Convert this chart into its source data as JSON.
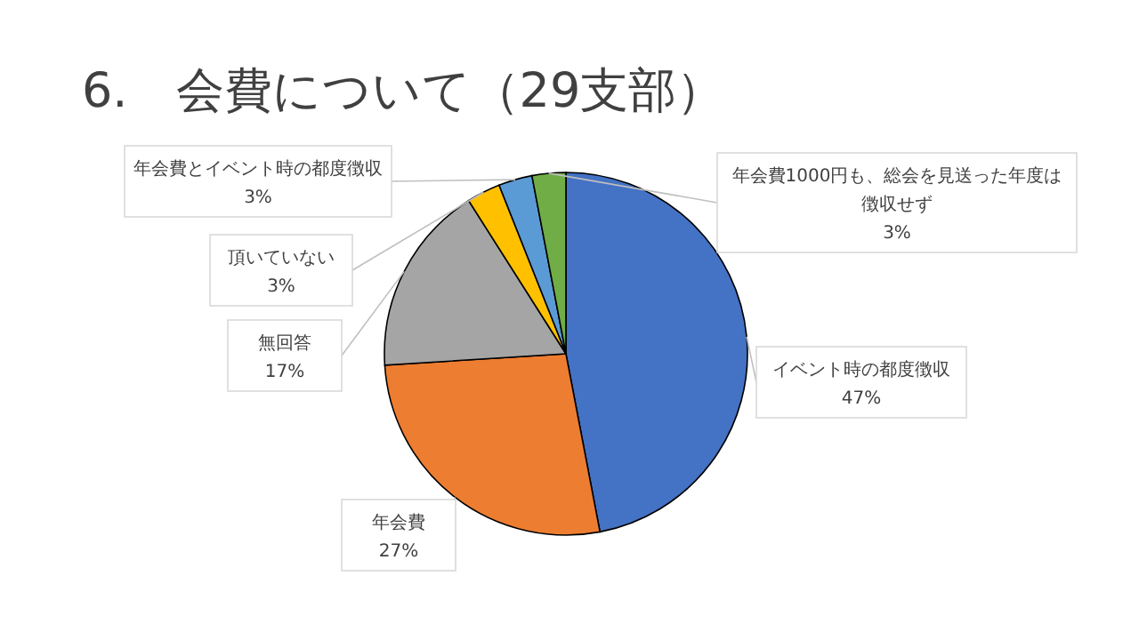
{
  "chart_data": {
    "type": "pie",
    "title": "6.　会費について（29支部）",
    "categories": [
      "イベント時の都度徴収",
      "年会費",
      "無回答",
      "頂いていない",
      "年会費とイベント時の都度徴収",
      "年会費1000円も、総会を見送った年度は徴収せず"
    ],
    "values": [
      47,
      27,
      17,
      3,
      3,
      3
    ],
    "value_labels": [
      "47%",
      "27%",
      "17%",
      "3%",
      "3%",
      "3%"
    ],
    "colors": [
      "#4472c4",
      "#ed7d31",
      "#a5a5a5",
      "#ffc000",
      "#5b9bd5",
      "#70ad47"
    ]
  }
}
